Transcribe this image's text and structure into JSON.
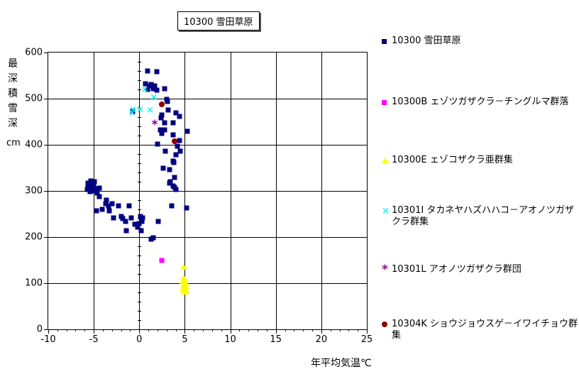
{
  "title": "10300 雪田草原",
  "axes": {
    "x": {
      "title": "年平均気温℃",
      "min": -10,
      "max": 25,
      "major_step": 5,
      "minor_step": 1,
      "tick_labels": [
        "-10",
        "-5",
        "0",
        "5",
        "10",
        "15",
        "20",
        "25"
      ]
    },
    "y": {
      "title": "最深積雪深",
      "unit": "cm",
      "min": 0,
      "max": 600,
      "major_step": 100,
      "inner_axis_minor_step": 20,
      "tick_labels": [
        "600",
        "500",
        "400",
        "300",
        "200",
        "100",
        "0"
      ]
    }
  },
  "chart_data": {
    "type": "scatter",
    "title": "10300 雪田草原",
    "xlabel": "年平均気温℃",
    "ylabel": "最深積雪深cm",
    "xlim": [
      -10,
      25
    ],
    "ylim": [
      0,
      600
    ],
    "grid": true,
    "legend_position": "right",
    "series": [
      {
        "name": "10300 雪田草原",
        "marker": "square",
        "color": "#000080",
        "points": [
          [
            0.9,
            560
          ],
          [
            1.9,
            558
          ],
          [
            0.7,
            533
          ],
          [
            1.3,
            531
          ],
          [
            1.1,
            528
          ],
          [
            1.7,
            527
          ],
          [
            1.5,
            522
          ],
          [
            0.9,
            520
          ],
          [
            1.9,
            519
          ],
          [
            2.8,
            522
          ],
          [
            3.0,
            499
          ],
          [
            3.1,
            494
          ],
          [
            3.2,
            476
          ],
          [
            4.0,
            470
          ],
          [
            2.5,
            465
          ],
          [
            4.4,
            462
          ],
          [
            2.4,
            459
          ],
          [
            -0.7,
            473
          ],
          [
            3.7,
            447
          ],
          [
            2.8,
            448
          ],
          [
            2.3,
            433
          ],
          [
            2.8,
            433
          ],
          [
            5.3,
            429
          ],
          [
            2.5,
            424
          ],
          [
            3.7,
            421
          ],
          [
            4.4,
            409
          ],
          [
            2.0,
            401
          ],
          [
            4.2,
            397
          ],
          [
            2.9,
            386
          ],
          [
            4.5,
            386
          ],
          [
            4.0,
            378
          ],
          [
            3.7,
            364
          ],
          [
            3.8,
            361
          ],
          [
            2.6,
            350
          ],
          [
            3.3,
            346
          ],
          [
            3.9,
            330
          ],
          [
            3.4,
            320
          ],
          [
            3.3,
            317
          ],
          [
            3.7,
            311
          ],
          [
            3.9,
            308
          ],
          [
            4.0,
            303
          ],
          [
            3.6,
            268
          ],
          [
            5.2,
            263
          ],
          [
            -5.6,
            317
          ],
          [
            -5.3,
            321
          ],
          [
            -5.1,
            317
          ],
          [
            -4.9,
            320
          ],
          [
            -5.6,
            308
          ],
          [
            -5.3,
            309
          ],
          [
            -5.0,
            311
          ],
          [
            -5.4,
            298
          ],
          [
            -5.1,
            300
          ],
          [
            -5.7,
            303
          ],
          [
            -4.9,
            305
          ],
          [
            -4.4,
            306
          ],
          [
            -4.6,
            295
          ],
          [
            -4.4,
            288
          ],
          [
            -3.6,
            280
          ],
          [
            -3.7,
            272
          ],
          [
            -3.4,
            268
          ],
          [
            -3.3,
            257
          ],
          [
            -4.7,
            257
          ],
          [
            -4.1,
            260
          ],
          [
            -3.0,
            273
          ],
          [
            -2.8,
            242
          ],
          [
            -2.3,
            268
          ],
          [
            -2.0,
            245
          ],
          [
            -1.8,
            240
          ],
          [
            -1.5,
            234
          ],
          [
            -1.1,
            268
          ],
          [
            -0.9,
            242
          ],
          [
            -0.5,
            227
          ],
          [
            -0.2,
            222
          ],
          [
            -1.4,
            214
          ],
          [
            0.1,
            245
          ],
          [
            0.3,
            234
          ],
          [
            0.4,
            242
          ],
          [
            0.2,
            214
          ],
          [
            0.0,
            230
          ],
          [
            2.1,
            234
          ],
          [
            1.5,
            199
          ],
          [
            1.3,
            196
          ]
        ]
      },
      {
        "name": "10300B ェゾツガザクラ－チングルマ群落",
        "marker": "square",
        "color": "#FF00FF",
        "points": [
          [
            2.5,
            150
          ]
        ]
      },
      {
        "name": "10300E ェゾコザクラ亜群集",
        "marker": "triangle",
        "color": "#FFFF00",
        "points": [
          [
            4.9,
            135
          ],
          [
            4.9,
            113
          ],
          [
            5.0,
            109
          ],
          [
            4.8,
            104
          ],
          [
            5.1,
            102
          ],
          [
            4.9,
            98
          ],
          [
            5.0,
            100
          ],
          [
            5.0,
            95
          ],
          [
            5.1,
            93
          ],
          [
            4.8,
            90
          ],
          [
            5.0,
            87
          ],
          [
            5.1,
            84
          ],
          [
            4.9,
            81
          ]
        ]
      },
      {
        "name": "10301I タカネヤハズハハコ－アオノツガザクラ群集",
        "marker": "x",
        "color": "#00FFFF",
        "points": [
          [
            0.6,
            519
          ],
          [
            1.6,
            502
          ],
          [
            0.1,
            476
          ],
          [
            -0.7,
            475
          ],
          [
            -0.8,
            468
          ],
          [
            1.2,
            474
          ]
        ]
      },
      {
        "name": "10301L アオノツガザクラ群団",
        "marker": "asterisk",
        "color": "#8B008B",
        "points": [
          [
            1.7,
            447
          ]
        ]
      },
      {
        "name": "10304K ショウジョウスゲ－イワイチョウ群集",
        "marker": "circle",
        "color": "#8B0000",
        "points": [
          [
            2.5,
            487
          ],
          [
            3.9,
            407
          ]
        ]
      }
    ]
  }
}
